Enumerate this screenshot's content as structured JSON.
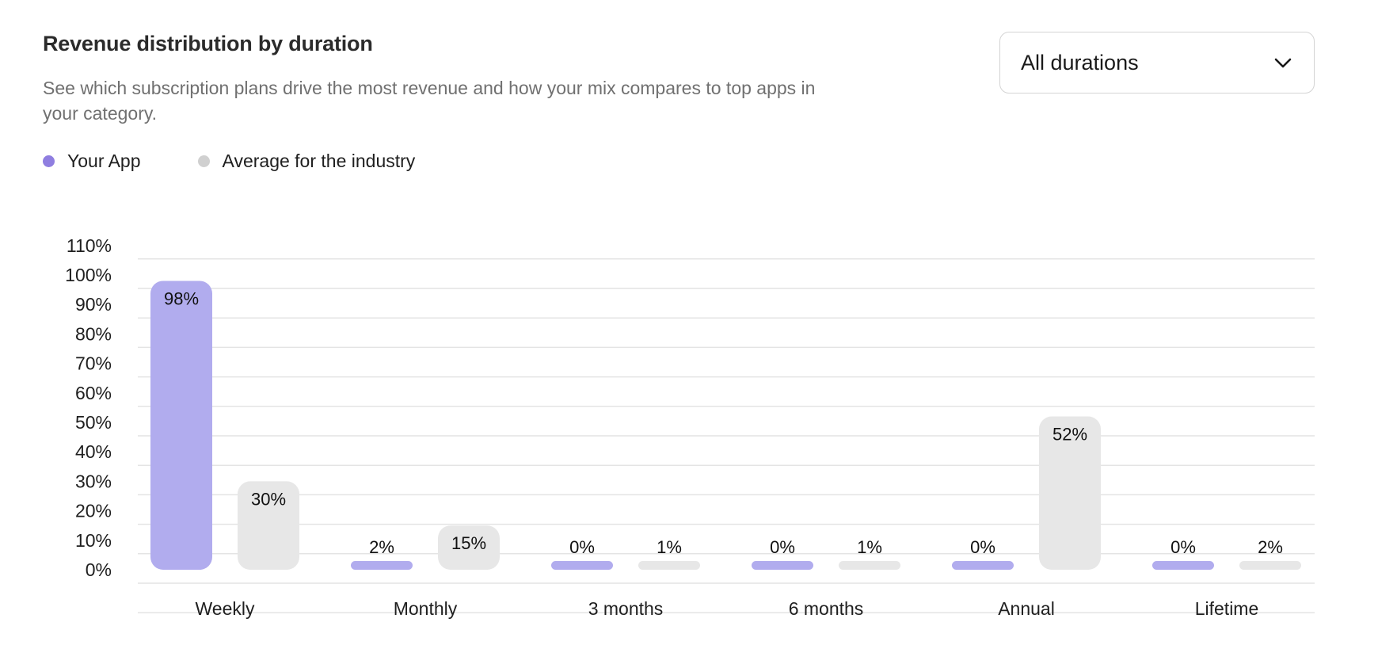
{
  "header": {
    "title": "Revenue distribution by duration",
    "subtitle": "See which subscription plans drive the most revenue and how your mix compares to top apps in your category."
  },
  "dropdown": {
    "selected": "All durations",
    "icon": "chevron-down-icon"
  },
  "legend": [
    {
      "label": "Your App",
      "color": "#8f7ee0"
    },
    {
      "label": "Average for the industry",
      "color": "#d0d0d0"
    }
  ],
  "colors": {
    "your_app_bar": "#b1acee",
    "industry_bar": "#e7e7e7",
    "gridline": "#e4e4e4"
  },
  "chart_data": {
    "type": "bar",
    "title": "Revenue distribution by duration",
    "categories": [
      "Weekly",
      "Monthly",
      "3 months",
      "6 months",
      "Annual",
      "Lifetime"
    ],
    "series": [
      {
        "name": "Your App",
        "values": [
          98,
          2,
          0,
          0,
          0,
          0
        ],
        "labels": [
          "98%",
          "2%",
          "0%",
          "0%",
          "0%",
          "0%"
        ]
      },
      {
        "name": "Average for the industry",
        "values": [
          30,
          15,
          1,
          1,
          52,
          2
        ],
        "labels": [
          "30%",
          "15%",
          "1%",
          "1%",
          "52%",
          "2%"
        ]
      }
    ],
    "yticks": [
      "0%",
      "10%",
      "20%",
      "30%",
      "40%",
      "50%",
      "60%",
      "70%",
      "80%",
      "90%",
      "100%",
      "110%"
    ],
    "ylim": [
      0,
      110
    ],
    "grid": true,
    "legend": "top-left"
  }
}
